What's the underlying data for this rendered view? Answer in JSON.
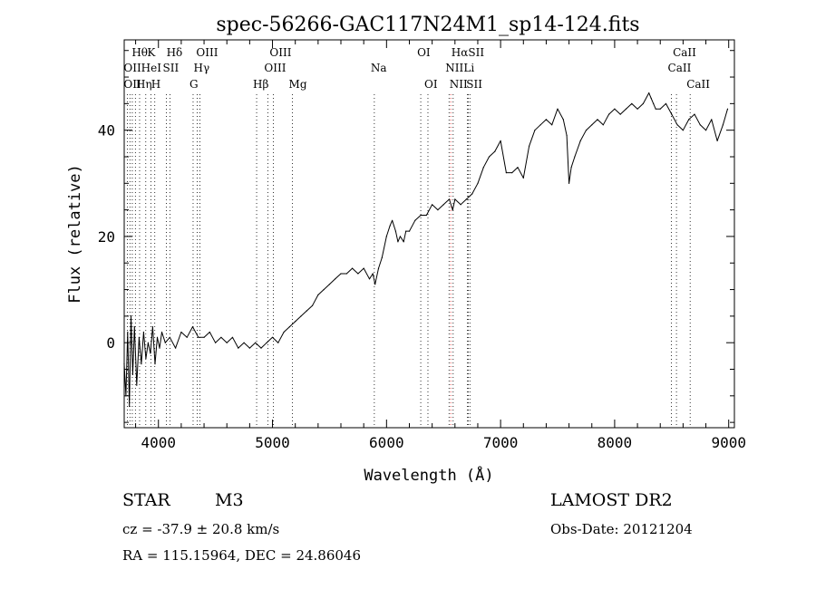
{
  "chart_data": {
    "type": "line",
    "title": "spec-56266-GAC117N24M1_sp14-124.fits",
    "xlabel": "Wavelength (Å)",
    "ylabel": "Flux (relative)",
    "xlim": [
      3700,
      9050
    ],
    "ylim": [
      -16,
      57
    ],
    "xticks": [
      4000,
      5000,
      6000,
      7000,
      8000,
      9000
    ],
    "yticks": [
      0,
      20,
      40
    ],
    "grid": false,
    "series": [
      {
        "x": [
          3700,
          3715,
          3730,
          3745,
          3760,
          3775,
          3790,
          3810,
          3830,
          3850,
          3870,
          3890,
          3910,
          3930,
          3950,
          3970,
          3990,
          4010,
          4030,
          4060,
          4100,
          4150,
          4200,
          4250,
          4300,
          4350,
          4400,
          4450,
          4500,
          4550,
          4600,
          4650,
          4700,
          4750,
          4800,
          4850,
          4900,
          4950,
          5000,
          5050,
          5100,
          5150,
          5200,
          5250,
          5300,
          5350,
          5400,
          5450,
          5500,
          5550,
          5600,
          5650,
          5700,
          5750,
          5800,
          5850,
          5880,
          5900,
          5930,
          5960,
          6000,
          6030,
          6050,
          6080,
          6100,
          6120,
          6150,
          6170,
          6200,
          6250,
          6300,
          6350,
          6400,
          6450,
          6500,
          6550,
          6580,
          6600,
          6650,
          6700,
          6750,
          6800,
          6850,
          6900,
          6950,
          7000,
          7050,
          7100,
          7150,
          7200,
          7250,
          7300,
          7350,
          7400,
          7450,
          7500,
          7550,
          7580,
          7600,
          7620,
          7650,
          7700,
          7750,
          7800,
          7850,
          7900,
          7950,
          8000,
          8050,
          8100,
          8150,
          8200,
          8250,
          8300,
          8320,
          8340,
          8360,
          8400,
          8450,
          8500,
          8550,
          8600,
          8650,
          8700,
          8750,
          8800,
          8850,
          8900,
          8950,
          8990
        ],
        "y": [
          -4,
          -10,
          2,
          -12,
          5,
          -6,
          3,
          -8,
          1,
          -4,
          2,
          -3,
          0,
          -2,
          3,
          -4,
          1,
          -1,
          2,
          0,
          1,
          -1,
          2,
          1,
          3,
          1,
          1,
          2,
          0,
          1,
          0,
          1,
          -1,
          0,
          -1,
          0,
          -1,
          0,
          1,
          0,
          2,
          3,
          4,
          5,
          6,
          7,
          9,
          10,
          11,
          12,
          13,
          13,
          14,
          13,
          14,
          12,
          13,
          11,
          14,
          16,
          20,
          22,
          23,
          21,
          19,
          20,
          19,
          21,
          21,
          23,
          24,
          24,
          26,
          25,
          26,
          27,
          25,
          27,
          26,
          27,
          28,
          30,
          33,
          35,
          36,
          38,
          32,
          32,
          33,
          31,
          37,
          40,
          41,
          42,
          41,
          44,
          42,
          39,
          30,
          33,
          35,
          38,
          40,
          41,
          42,
          41,
          43,
          44,
          43,
          44,
          45,
          44,
          45,
          47,
          46,
          45,
          44,
          44,
          45,
          43,
          41,
          40,
          42,
          43,
          41,
          40,
          42,
          38,
          41,
          44
        ]
      }
    ],
    "line_labels": [
      {
        "text": "Hθ",
        "x": 3798,
        "row": 1
      },
      {
        "text": "K",
        "x": 3934,
        "row": 1
      },
      {
        "text": "Hδ",
        "x": 4102,
        "row": 1
      },
      {
        "text": "OIII",
        "x": 4363,
        "row": 1
      },
      {
        "text": "OIII",
        "x": 5007,
        "row": 1
      },
      {
        "text": "OI",
        "x": 6300,
        "row": 1
      },
      {
        "text": "HαSII",
        "x": 6600,
        "row": 1
      },
      {
        "text": "CaII",
        "x": 8542,
        "row": 1
      },
      {
        "text": "OII",
        "x": 3727,
        "row": 2
      },
      {
        "text": "HeI",
        "x": 3880,
        "row": 2
      },
      {
        "text": "SII",
        "x": 4070,
        "row": 2
      },
      {
        "text": "Hγ",
        "x": 4340,
        "row": 2
      },
      {
        "text": "OIII",
        "x": 4959,
        "row": 2
      },
      {
        "text": "Na",
        "x": 5893,
        "row": 2
      },
      {
        "text": "NII",
        "x": 6548,
        "row": 2
      },
      {
        "text": "Li",
        "x": 6708,
        "row": 2
      },
      {
        "text": "CaII",
        "x": 8498,
        "row": 2
      },
      {
        "text": "OII",
        "x": 3727,
        "row": 3
      },
      {
        "text": "Hη",
        "x": 3835,
        "row": 3
      },
      {
        "text": "H",
        "x": 3968,
        "row": 3
      },
      {
        "text": "G",
        "x": 4304,
        "row": 3
      },
      {
        "text": "Hβ",
        "x": 4861,
        "row": 3
      },
      {
        "text": "Mg",
        "x": 5175,
        "row": 3
      },
      {
        "text": "OI",
        "x": 6363,
        "row": 3
      },
      {
        "text": "NII",
        "x": 6584,
        "row": 3
      },
      {
        "text": "SII",
        "x": 6731,
        "row": 3
      },
      {
        "text": "CaII",
        "x": 8662,
        "row": 3
      }
    ],
    "line_markers": [
      3727,
      3750,
      3771,
      3798,
      3835,
      3889,
      3934,
      3968,
      4070,
      4102,
      4304,
      4340,
      4363,
      4861,
      4959,
      5007,
      5175,
      5893,
      6300,
      6363,
      6548,
      6563,
      6584,
      6708,
      6717,
      6731,
      8498,
      8542,
      8662
    ]
  },
  "info": {
    "object_class": "STAR",
    "subclass": "M3",
    "survey": "LAMOST DR2",
    "redshift": "cz = -37.9 ± 20.8 km/s",
    "obs_date": "Obs-Date: 20121204",
    "coordinates": "RA = 115.15964, DEC =  24.86046"
  }
}
